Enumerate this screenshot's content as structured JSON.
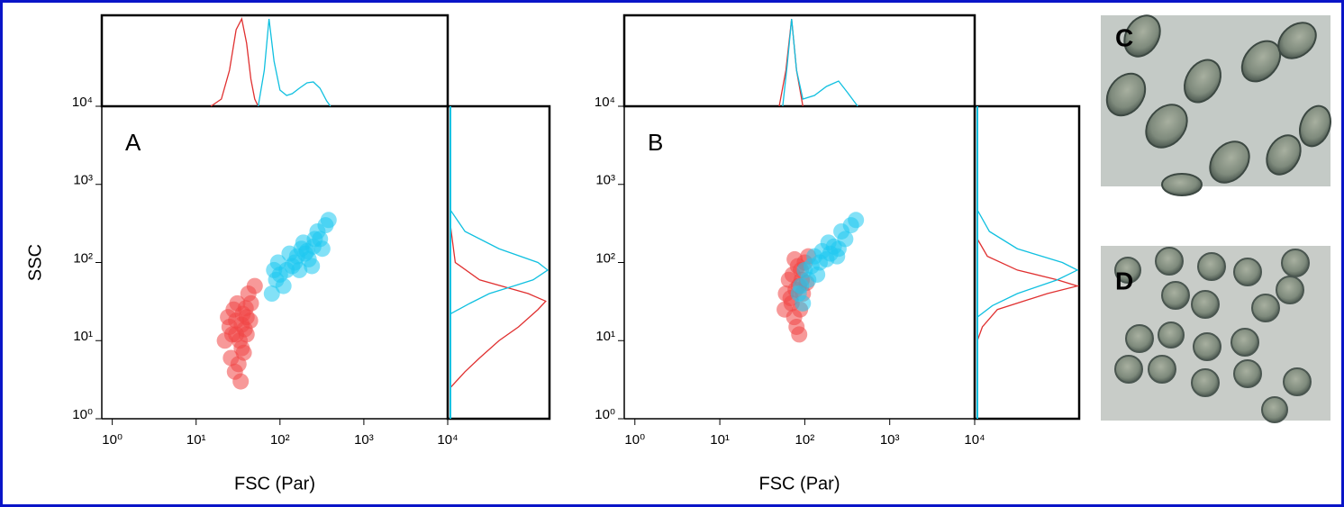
{
  "chart_data": [
    {
      "type": "scatter",
      "label": "A",
      "xlabel": "FSC (Par)",
      "ylabel": "SSC",
      "log": true,
      "xlim": [
        0.75,
        10000
      ],
      "ylim": [
        1,
        10000
      ],
      "xticks": [
        {
          "value": 1,
          "label": "10⁰"
        },
        {
          "value": 10,
          "label": "10¹"
        },
        {
          "value": 100,
          "label": "10²"
        },
        {
          "value": 1000,
          "label": "10³"
        },
        {
          "value": 10000,
          "label": "10⁴"
        }
      ],
      "yticks": [
        {
          "value": 1,
          "label": "10⁰"
        },
        {
          "value": 10,
          "label": "10¹"
        },
        {
          "value": 100,
          "label": "10²"
        },
        {
          "value": 1000,
          "label": "10³"
        },
        {
          "value": 10000,
          "label": "10⁴"
        }
      ],
      "series": [
        {
          "color": "#f04545",
          "x": [
            30,
            35,
            25,
            40,
            32,
            28,
            45,
            38,
            22,
            34,
            42,
            30,
            26,
            36,
            50,
            33,
            29,
            40,
            24,
            37,
            31,
            44,
            27,
            35,
            39
          ],
          "y": [
            12,
            8,
            15,
            20,
            5,
            25,
            30,
            14,
            10,
            3,
            40,
            18,
            6,
            22,
            50,
            10,
            4,
            12,
            20,
            7,
            30,
            18,
            12,
            16,
            26
          ]
        },
        {
          "color": "#1ec8f0",
          "x": [
            200,
            150,
            250,
            300,
            120,
            90,
            80,
            100,
            180,
            220,
            280,
            350,
            160,
            130,
            240,
            110,
            85,
            190,
            320,
            260,
            140,
            95,
            210,
            170,
            380
          ],
          "y": [
            130,
            100,
            160,
            200,
            80,
            60,
            40,
            70,
            150,
            110,
            250,
            300,
            120,
            130,
            90,
            50,
            80,
            180,
            150,
            200,
            90,
            100,
            140,
            80,
            350
          ]
        }
      ],
      "histogram_x": [
        {
          "color": "#e03030",
          "x": [
            15,
            20,
            25,
            30,
            35,
            40,
            45,
            50,
            55
          ],
          "values": [
            0,
            8,
            40,
            85,
            97,
            70,
            30,
            8,
            0
          ]
        },
        {
          "color": "#10c0e0",
          "x": [
            55,
            65,
            74,
            85,
            100,
            120,
            140,
            170,
            210,
            250,
            300,
            360,
            400
          ],
          "values": [
            0,
            40,
            97,
            50,
            18,
            12,
            14,
            20,
            26,
            27,
            20,
            6,
            0
          ]
        }
      ],
      "histogram_y": [
        {
          "color": "#e03030",
          "x": [
            2.5,
            4,
            6,
            10,
            15,
            25,
            32,
            40,
            60,
            100,
            300
          ],
          "values": [
            0,
            15,
            30,
            50,
            70,
            90,
            98,
            80,
            30,
            5,
            0
          ]
        },
        {
          "color": "#10c0e0",
          "x": [
            22,
            30,
            40,
            50,
            60,
            80,
            100,
            150,
            250,
            470
          ],
          "values": [
            0,
            20,
            40,
            65,
            85,
            100,
            90,
            50,
            15,
            0
          ]
        }
      ]
    },
    {
      "type": "scatter",
      "label": "B",
      "xlabel": "FSC (Par)",
      "log": true,
      "xlim": [
        0.75,
        10000
      ],
      "ylim": [
        1,
        10000
      ],
      "xticks": [
        {
          "value": 1,
          "label": "10⁰"
        },
        {
          "value": 10,
          "label": "10¹"
        },
        {
          "value": 100,
          "label": "10²"
        },
        {
          "value": 1000,
          "label": "10³"
        },
        {
          "value": 10000,
          "label": "10⁴"
        }
      ],
      "yticks": [
        {
          "value": 1,
          "label": "10⁰"
        },
        {
          "value": 10,
          "label": "10¹"
        },
        {
          "value": 100,
          "label": "10²"
        },
        {
          "value": 1000,
          "label": "10³"
        },
        {
          "value": 10000,
          "label": "10⁴"
        }
      ],
      "series": [
        {
          "color": "#f04545",
          "x": [
            85,
            70,
            90,
            75,
            100,
            65,
            80,
            95,
            60,
            110,
            88,
            72,
            78,
            92,
            68,
            83,
            105,
            58,
            76,
            86
          ],
          "y": [
            50,
            30,
            80,
            20,
            100,
            60,
            15,
            40,
            40,
            120,
            25,
            70,
            45,
            60,
            35,
            90,
            55,
            25,
            110,
            12
          ]
        },
        {
          "color": "#1ec8f0",
          "x": [
            90,
            85,
            100,
            150,
            200,
            250,
            300,
            180,
            220,
            120,
            95,
            130,
            270,
            350,
            160,
            110,
            240,
            190,
            400,
            140
          ],
          "y": [
            50,
            40,
            80,
            100,
            130,
            150,
            200,
            110,
            160,
            90,
            30,
            120,
            250,
            300,
            140,
            60,
            120,
            180,
            350,
            70
          ]
        }
      ],
      "histogram_x": [
        {
          "color": "#e03030",
          "x": [
            50,
            60,
            70,
            80,
            95
          ],
          "values": [
            0,
            40,
            97,
            40,
            0
          ]
        },
        {
          "color": "#10c0e0",
          "x": [
            55,
            62,
            70,
            80,
            95,
            130,
            180,
            250,
            320,
            420
          ],
          "values": [
            0,
            45,
            97,
            40,
            8,
            12,
            22,
            28,
            15,
            0
          ]
        }
      ],
      "histogram_y": [
        {
          "color": "#e03030",
          "x": [
            10,
            15,
            25,
            40,
            50,
            60,
            80,
            120,
            200
          ],
          "values": [
            0,
            5,
            20,
            70,
            100,
            80,
            40,
            10,
            0
          ]
        },
        {
          "color": "#10c0e0",
          "x": [
            20,
            28,
            40,
            60,
            80,
            100,
            150,
            250,
            470
          ],
          "values": [
            0,
            15,
            40,
            80,
            100,
            85,
            40,
            12,
            0
          ]
        }
      ]
    }
  ],
  "images": [
    {
      "label": "C"
    },
    {
      "label": "D"
    }
  ]
}
